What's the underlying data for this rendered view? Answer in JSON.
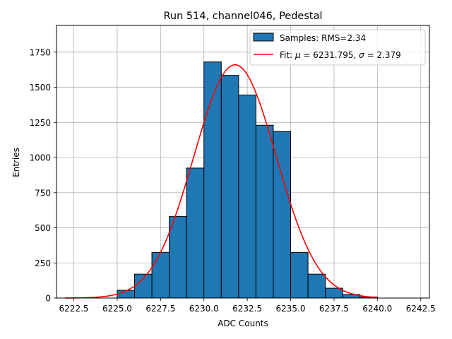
{
  "chart_data": {
    "type": "bar",
    "title": "Run 514, channel046, Pedestal",
    "xlabel": "ADC Counts",
    "ylabel": "Entries",
    "xlim": [
      6221.5,
      6243.0
    ],
    "ylim": [
      0,
      1940
    ],
    "xticks": [
      6222.5,
      6225.0,
      6227.5,
      6230.0,
      6232.5,
      6235.0,
      6237.5,
      6240.0,
      6242.5
    ],
    "xtick_labels": [
      "6222.5",
      "6225.0",
      "6227.5",
      "6230.0",
      "6232.5",
      "6235.0",
      "6237.5",
      "6240.0",
      "6242.5"
    ],
    "yticks": [
      0,
      250,
      500,
      750,
      1000,
      1250,
      1500,
      1750
    ],
    "ytick_labels": [
      "0",
      "250",
      "500",
      "750",
      "1000",
      "1250",
      "1500",
      "1750"
    ],
    "grid": true,
    "legend_position": "top-right",
    "histogram": {
      "name": "Samples: RMS=2.34",
      "color": "#1f77b4",
      "edge_color": "#000000",
      "bin_edges": [
        6225,
        6226,
        6227,
        6228,
        6229,
        6230,
        6231,
        6232,
        6233,
        6234,
        6235,
        6236,
        6237,
        6238,
        6239,
        6240
      ],
      "counts": [
        55,
        170,
        325,
        580,
        925,
        1680,
        1585,
        1445,
        1230,
        1185,
        325,
        170,
        70,
        25,
        8
      ]
    },
    "fit": {
      "name_prefix": "Fit: ",
      "mu_symbol": "μ",
      "mu_text": " = 6231.795, ",
      "sigma_symbol": "σ",
      "sigma_text": " = 2.379",
      "color": "#ff0000",
      "mu": 6231.795,
      "sigma": 2.379,
      "amplitude": 1660,
      "x_range": [
        6222.0,
        6240.0
      ]
    }
  }
}
